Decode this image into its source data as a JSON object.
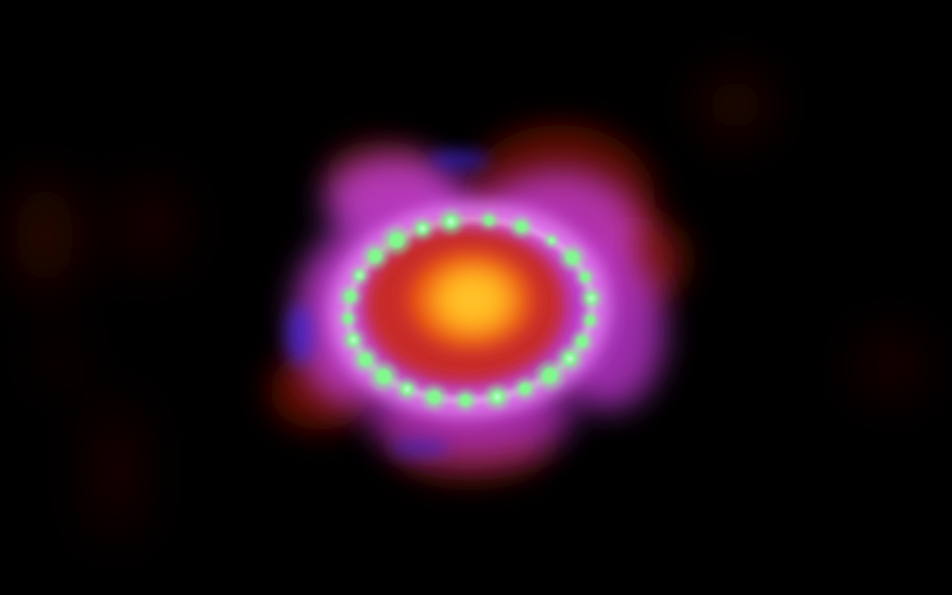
{
  "image": {
    "subject": "supernova-remnant-ring",
    "colors": {
      "background": "#000000",
      "outer_glow": "#c83cd2",
      "outer_glow_edge": "#9b1fa8",
      "halo_red": "#a0180c",
      "inner_core": "#ff7a10",
      "core_hot": "#ffc020",
      "ring_beads": "#7dff8a",
      "ring_bead_highlight": "#d8fff0",
      "ring_band": "#f0a0ff"
    }
  }
}
